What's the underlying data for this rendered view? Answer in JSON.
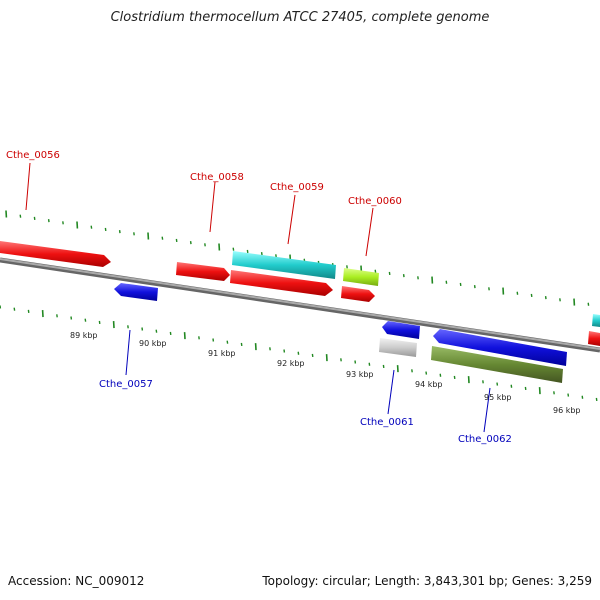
{
  "title": "Clostridium thermocellum ATCC 27405, complete genome",
  "footer": {
    "accession": "Accession: NC_009012",
    "summary": "Topology: circular; Length: 3,843,301 bp; Genes: 3,259"
  },
  "colors": {
    "forward_gene_label": "#cc0000",
    "reverse_gene_label": "#0000bb",
    "backbone": "#888888",
    "tick": "#228822",
    "red": "#ee1111",
    "blue": "#1111dd",
    "cyan": "#22cccc",
    "lime": "#aaee22",
    "grey": "#cccccc",
    "olive": "#668833"
  },
  "gene_labels": [
    {
      "text": "Cthe_0056",
      "strand": "forward"
    },
    {
      "text": "Cthe_0058",
      "strand": "forward"
    },
    {
      "text": "Cthe_0059",
      "strand": "forward"
    },
    {
      "text": "Cthe_0060",
      "strand": "forward"
    },
    {
      "text": "Cthe_0057",
      "strand": "reverse"
    },
    {
      "text": "Cthe_0061",
      "strand": "reverse"
    },
    {
      "text": "Cthe_0062",
      "strand": "reverse"
    }
  ],
  "kbp_labels": [
    "89 kbp",
    "90 kbp",
    "91 kbp",
    "92 kbp",
    "93 kbp",
    "94 kbp",
    "95 kbp",
    "96 kbp"
  ]
}
